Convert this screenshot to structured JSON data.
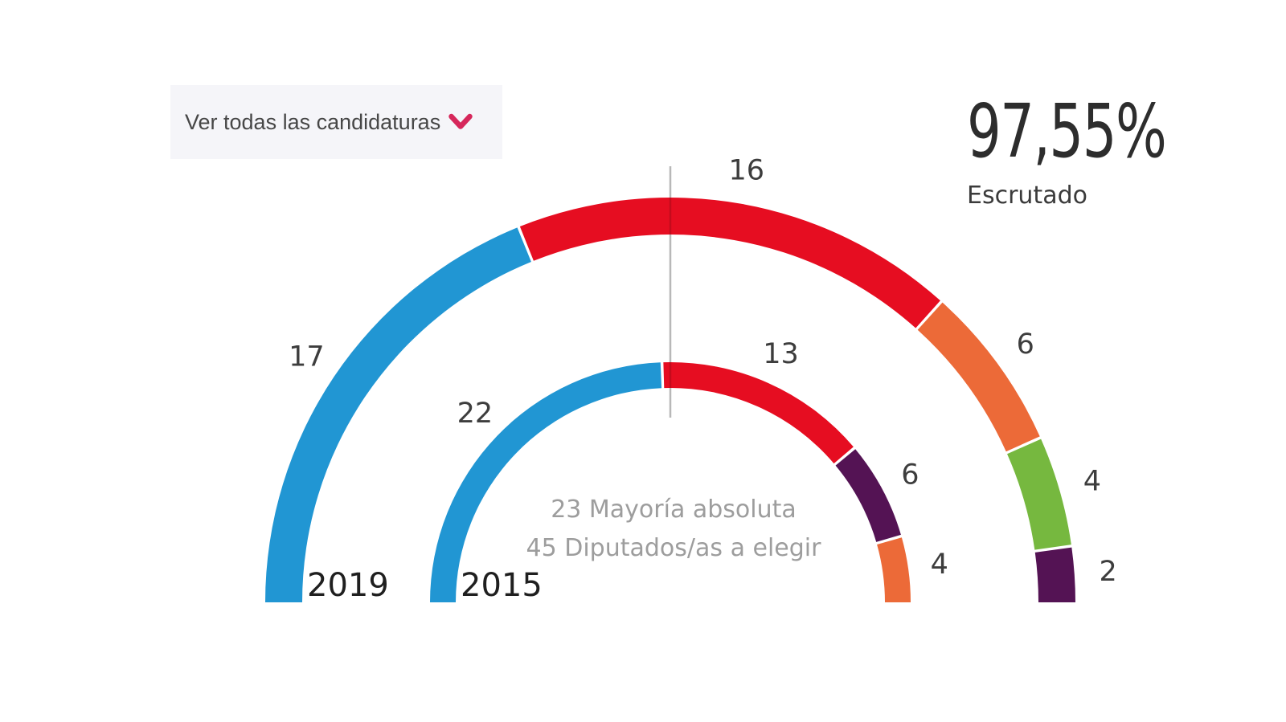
{
  "candidacies_link": {
    "label": "Ver todas las candidaturas"
  },
  "scrutiny": {
    "percent": "97,55%",
    "label": "Escrutado"
  },
  "center_note": {
    "line1": "23 Mayoría absoluta",
    "line2": "45 Diputados/as a elegir"
  },
  "colors": {
    "accent_pink": "#d6275b",
    "link_bg": "#f5f5f9",
    "seat_label": "#3d3d3d",
    "year_label": "#1f1f1f",
    "note_gray": "#9d9d9d",
    "marker_gray": "#b8b8b8"
  },
  "chart_data": {
    "type": "hemicycle",
    "total_seats": 45,
    "majority_seats": 23,
    "rings": [
      {
        "year": "2019",
        "segments": [
          {
            "seats": 17,
            "color": "#2196D3"
          },
          {
            "seats": 16,
            "color": "#E60D21"
          },
          {
            "seats": 6,
            "color": "#EC6A38"
          },
          {
            "seats": 4,
            "color": "#76B83F"
          },
          {
            "seats": 2,
            "color": "#541354"
          }
        ]
      },
      {
        "year": "2015",
        "segments": [
          {
            "seats": 22,
            "color": "#2196D3"
          },
          {
            "seats": 13,
            "color": "#E60D21"
          },
          {
            "seats": 6,
            "color": "#541354"
          },
          {
            "seats": 4,
            "color": "#EC6A38"
          }
        ]
      }
    ]
  }
}
